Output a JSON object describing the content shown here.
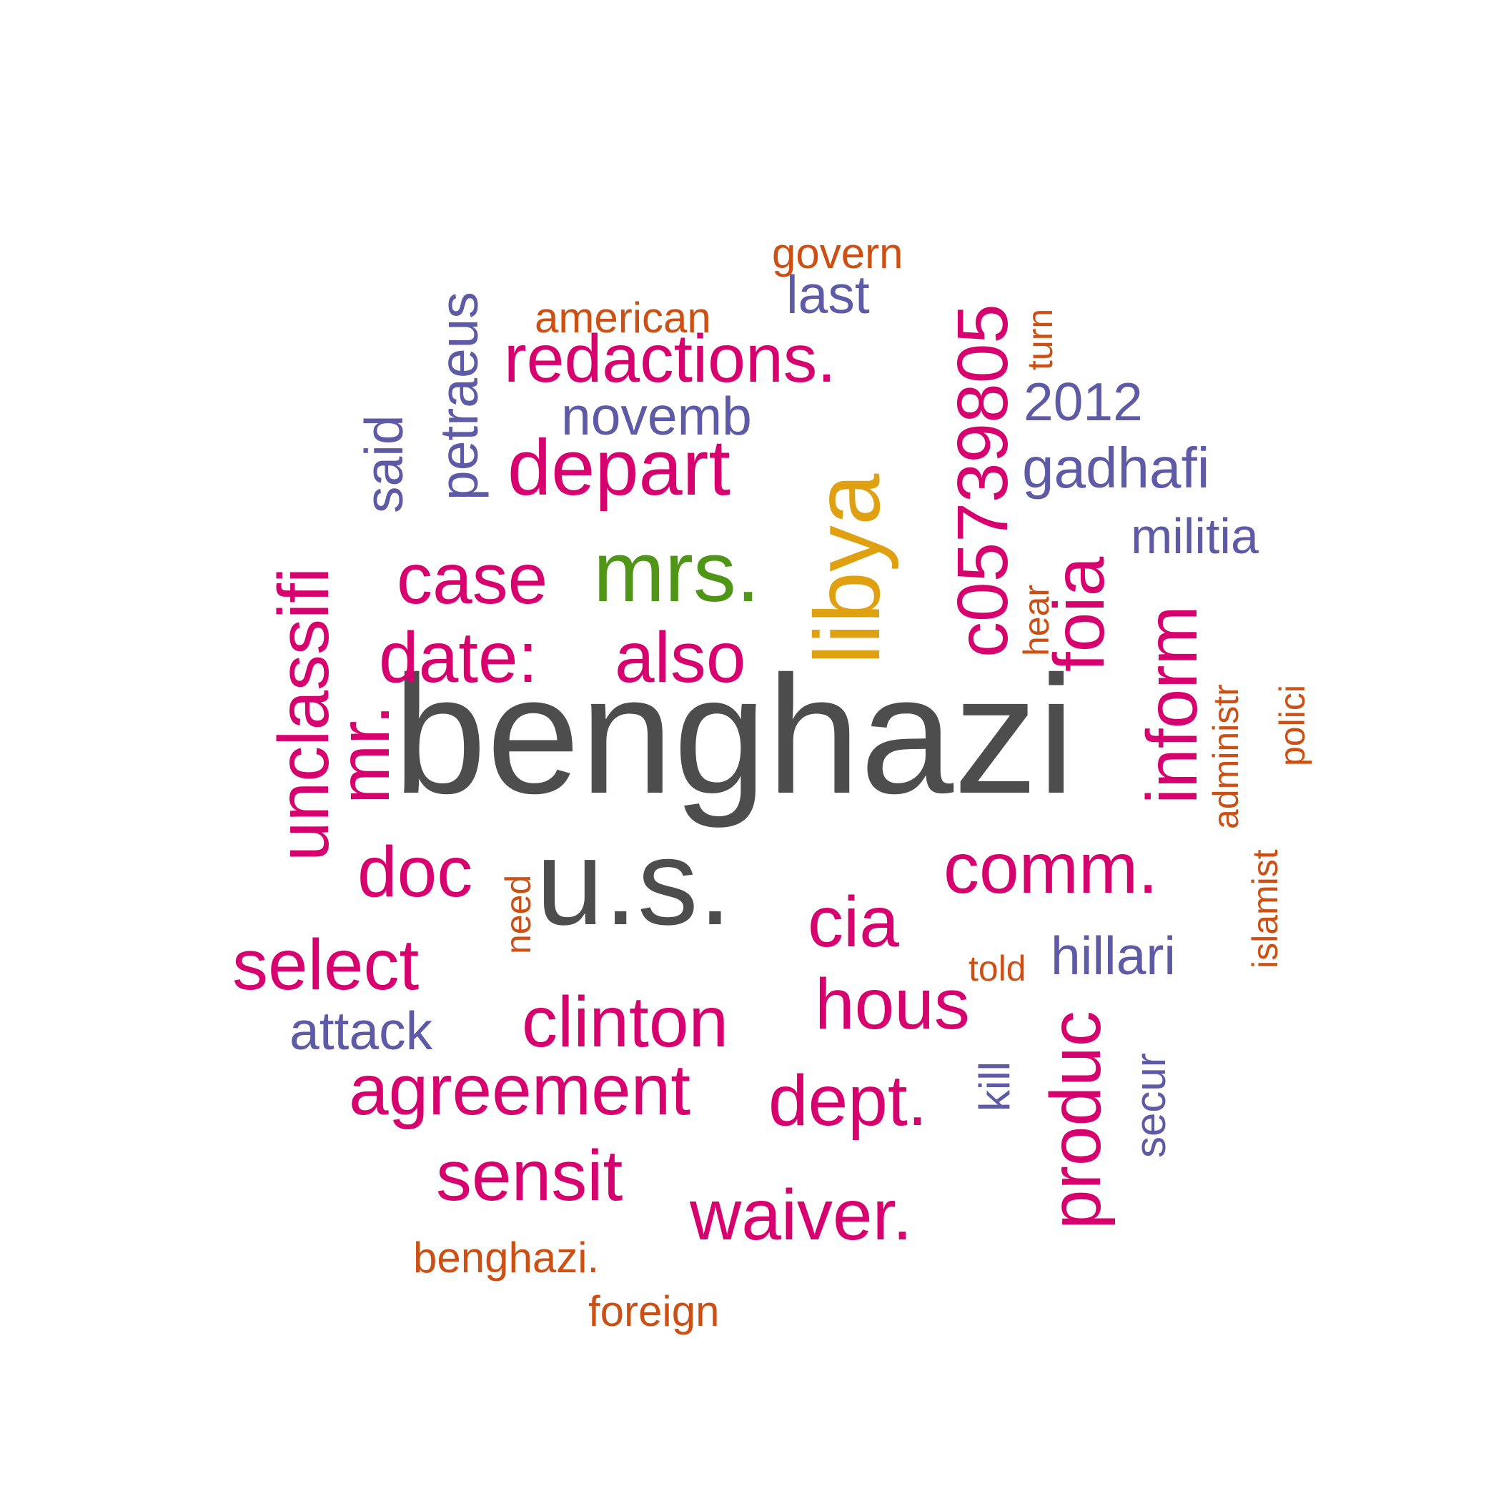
{
  "palette": {
    "gray": "#4d4d4d",
    "magenta": "#d6006f",
    "purple": "#5f5aa6",
    "orange": "#cc5014",
    "gold": "#dfa011",
    "green": "#4f9618"
  },
  "words": [
    {
      "text": "benghazi",
      "color": "gray",
      "rotated": false
    },
    {
      "text": "u.s.",
      "color": "gray",
      "rotated": false
    },
    {
      "text": "libya",
      "color": "gold",
      "rotated": true
    },
    {
      "text": "mrs.",
      "color": "green",
      "rotated": false
    },
    {
      "text": "c05739805",
      "color": "magenta",
      "rotated": true
    },
    {
      "text": "redactions.",
      "color": "magenta",
      "rotated": false
    },
    {
      "text": "depart",
      "color": "magenta",
      "rotated": false
    },
    {
      "text": "case",
      "color": "magenta",
      "rotated": false
    },
    {
      "text": "date:",
      "color": "magenta",
      "rotated": false
    },
    {
      "text": "also",
      "color": "magenta",
      "rotated": false
    },
    {
      "text": "unclassifi",
      "color": "magenta",
      "rotated": true
    },
    {
      "text": "mr.",
      "color": "magenta",
      "rotated": true
    },
    {
      "text": "foia",
      "color": "magenta",
      "rotated": true
    },
    {
      "text": "inform",
      "color": "magenta",
      "rotated": true
    },
    {
      "text": "doc",
      "color": "magenta",
      "rotated": false
    },
    {
      "text": "cia",
      "color": "magenta",
      "rotated": false
    },
    {
      "text": "comm.",
      "color": "magenta",
      "rotated": false
    },
    {
      "text": "select",
      "color": "magenta",
      "rotated": false
    },
    {
      "text": "clinton",
      "color": "magenta",
      "rotated": false
    },
    {
      "text": "hous",
      "color": "magenta",
      "rotated": false
    },
    {
      "text": "agreement",
      "color": "magenta",
      "rotated": false
    },
    {
      "text": "dept.",
      "color": "magenta",
      "rotated": false
    },
    {
      "text": "produc",
      "color": "magenta",
      "rotated": true
    },
    {
      "text": "sensit",
      "color": "magenta",
      "rotated": false
    },
    {
      "text": "waiver.",
      "color": "magenta",
      "rotated": false
    },
    {
      "text": "petraeus",
      "color": "purple",
      "rotated": true
    },
    {
      "text": "said",
      "color": "purple",
      "rotated": true
    },
    {
      "text": "last",
      "color": "purple",
      "rotated": false
    },
    {
      "text": "novemb",
      "color": "purple",
      "rotated": false
    },
    {
      "text": "2012",
      "color": "purple",
      "rotated": false
    },
    {
      "text": "gadhafi",
      "color": "purple",
      "rotated": false
    },
    {
      "text": "militia",
      "color": "purple",
      "rotated": false
    },
    {
      "text": "hillari",
      "color": "purple",
      "rotated": false
    },
    {
      "text": "attack",
      "color": "purple",
      "rotated": false
    },
    {
      "text": "kill",
      "color": "purple",
      "rotated": true
    },
    {
      "text": "secur",
      "color": "purple",
      "rotated": true
    },
    {
      "text": "govern",
      "color": "orange",
      "rotated": false
    },
    {
      "text": "american",
      "color": "orange",
      "rotated": false
    },
    {
      "text": "turn",
      "color": "orange",
      "rotated": true
    },
    {
      "text": "hear",
      "color": "orange",
      "rotated": true
    },
    {
      "text": "administr",
      "color": "orange",
      "rotated": true
    },
    {
      "text": "polici",
      "color": "orange",
      "rotated": true
    },
    {
      "text": "islamist",
      "color": "orange",
      "rotated": true
    },
    {
      "text": "need",
      "color": "orange",
      "rotated": true
    },
    {
      "text": "told",
      "color": "orange",
      "rotated": false
    },
    {
      "text": "benghazi.",
      "color": "orange",
      "rotated": false
    },
    {
      "text": "foreign",
      "color": "orange",
      "rotated": false
    }
  ]
}
